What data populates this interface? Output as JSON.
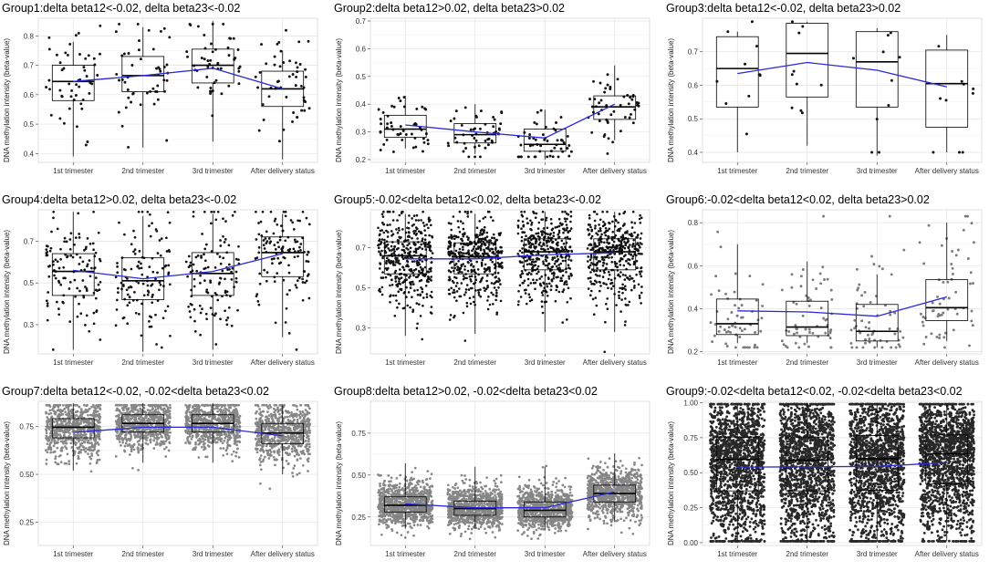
{
  "figure": {
    "ylabel": "DNA methylation intensity (beta-value)",
    "categories": [
      "1st trimester",
      "2nd trimester",
      "3rd trimester",
      "After delivery status"
    ]
  },
  "colors": {
    "trend": "#2a2ad8",
    "point": "#111111",
    "box": "#000000",
    "panel_bg": "#ffffff",
    "grid": "#e3e3e3"
  },
  "chart_data": [
    {
      "type": "box",
      "title": "Group1:delta beta12<-0.02, delta beta23<-0.02",
      "categories": [
        "1st trimester",
        "2nd trimester",
        "3rd trimester",
        "After delivery status"
      ],
      "ylim": [
        0.37,
        0.86
      ],
      "yticks": [
        0.4,
        0.5,
        0.6,
        0.7,
        0.8
      ],
      "ytick_labels": [
        "0.4",
        "0.5",
        "0.6",
        "0.7",
        "0.8"
      ],
      "box": [
        {
          "min": 0.39,
          "q1": 0.58,
          "median": 0.645,
          "q3": 0.7,
          "max": 0.78
        },
        {
          "min": 0.42,
          "q1": 0.61,
          "median": 0.665,
          "q3": 0.73,
          "max": 0.83
        },
        {
          "min": 0.44,
          "q1": 0.64,
          "median": 0.7,
          "q3": 0.755,
          "max": 0.85
        },
        {
          "min": 0.38,
          "q1": 0.56,
          "median": 0.62,
          "q3": 0.68,
          "max": 0.75
        }
      ],
      "trend": [
        0.645,
        0.665,
        0.69,
        0.62
      ],
      "n_points": 50,
      "point_opacity": 1,
      "point_size": 2.3,
      "y_low": 0.39,
      "y_high": 0.84
    },
    {
      "type": "box",
      "title": "Group2:delta beta12>0.02, delta beta23>0.02",
      "categories": [
        "1st trimester",
        "2nd trimester",
        "3rd trimester",
        "After delivery status"
      ],
      "ylim": [
        0.19,
        0.71
      ],
      "yticks": [
        0.2,
        0.3,
        0.4,
        0.5,
        0.6,
        0.7
      ],
      "ytick_labels": [
        "0.2",
        "0.3",
        "0.4",
        "0.5",
        "0.6",
        "0.7"
      ],
      "box": [
        {
          "min": 0.24,
          "q1": 0.28,
          "median": 0.31,
          "q3": 0.36,
          "max": 0.43
        },
        {
          "min": 0.22,
          "q1": 0.26,
          "median": 0.29,
          "q3": 0.33,
          "max": 0.4
        },
        {
          "min": 0.2,
          "q1": 0.23,
          "median": 0.255,
          "q3": 0.31,
          "max": 0.38
        },
        {
          "min": 0.27,
          "q1": 0.345,
          "median": 0.39,
          "q3": 0.43,
          "max": 0.54
        }
      ],
      "trend": [
        0.325,
        0.3,
        0.278,
        0.4
      ],
      "n_points": 50,
      "point_opacity": 1,
      "point_size": 2.3,
      "y_low": 0.21,
      "y_high": 0.69
    },
    {
      "type": "box",
      "title": "Group3:delta beta12<-0.02, delta beta23>0.02",
      "categories": [
        "1st trimester",
        "2nd trimester",
        "3rd trimester",
        "After delivery status"
      ],
      "ylim": [
        0.37,
        0.8
      ],
      "yticks": [
        0.4,
        0.5,
        0.6,
        0.7
      ],
      "ytick_labels": [
        "0.4",
        "0.5",
        "0.6",
        "0.7"
      ],
      "box": [
        {
          "min": 0.4,
          "q1": 0.535,
          "median": 0.65,
          "q3": 0.745,
          "max": 0.76
        },
        {
          "min": 0.42,
          "q1": 0.565,
          "median": 0.695,
          "q3": 0.785,
          "max": 0.79
        },
        {
          "min": 0.39,
          "q1": 0.535,
          "median": 0.67,
          "q3": 0.76,
          "max": 0.77
        },
        {
          "min": 0.4,
          "q1": 0.475,
          "median": 0.605,
          "q3": 0.705,
          "max": 0.75
        }
      ],
      "trend": [
        0.635,
        0.668,
        0.645,
        0.595
      ],
      "n_points": 10,
      "point_opacity": 1,
      "point_size": 2.4,
      "y_low": 0.4,
      "y_high": 0.79
    },
    {
      "type": "box",
      "title": "Group4:delta beta12>0.02, delta beta23<-0.02",
      "categories": [
        "1st trimester",
        "2nd trimester",
        "3rd trimester",
        "After delivery status"
      ],
      "ylim": [
        0.16,
        0.85
      ],
      "yticks": [
        0.3,
        0.5,
        0.7
      ],
      "ytick_labels": [
        "0.3",
        "0.5",
        "0.7"
      ],
      "box": [
        {
          "min": 0.18,
          "q1": 0.44,
          "median": 0.555,
          "q3": 0.64,
          "max": 0.84
        },
        {
          "min": 0.17,
          "q1": 0.42,
          "median": 0.51,
          "q3": 0.62,
          "max": 0.82
        },
        {
          "min": 0.18,
          "q1": 0.44,
          "median": 0.545,
          "q3": 0.645,
          "max": 0.83
        },
        {
          "min": 0.24,
          "q1": 0.53,
          "median": 0.645,
          "q3": 0.72,
          "max": 0.83
        }
      ],
      "trend": [
        0.56,
        0.52,
        0.555,
        0.64
      ],
      "n_points": 120,
      "point_opacity": 1,
      "point_size": 2.1,
      "y_low": 0.18,
      "y_high": 0.84
    },
    {
      "type": "box",
      "title": "Group5:-0.02<delta beta12<0.02, delta beta23<-0.02",
      "categories": [
        "1st trimester",
        "2nd trimester",
        "3rd trimester",
        "After delivery status"
      ],
      "ylim": [
        0.17,
        0.89
      ],
      "yticks": [
        0.3,
        0.5,
        0.7
      ],
      "ytick_labels": [
        "0.3",
        "0.5",
        "0.7"
      ],
      "box": [
        {
          "min": 0.26,
          "q1": 0.57,
          "median": 0.66,
          "q3": 0.73,
          "max": 0.87
        },
        {
          "min": 0.27,
          "q1": 0.57,
          "median": 0.655,
          "q3": 0.725,
          "max": 0.87
        },
        {
          "min": 0.28,
          "q1": 0.59,
          "median": 0.68,
          "q3": 0.745,
          "max": 0.88
        },
        {
          "min": 0.28,
          "q1": 0.59,
          "median": 0.68,
          "q3": 0.745,
          "max": 0.88
        }
      ],
      "trend": [
        0.645,
        0.645,
        0.665,
        0.675
      ],
      "n_points": 420,
      "point_opacity": 1,
      "point_size": 2.0,
      "y_low": 0.18,
      "y_high": 0.88
    },
    {
      "type": "box",
      "title": "Group6:-0.02<delta beta12<0.02, delta beta23>0.02",
      "categories": [
        "1st trimester",
        "2nd trimester",
        "3rd trimester",
        "After delivery status"
      ],
      "ylim": [
        0.19,
        0.86
      ],
      "yticks": [
        0.2,
        0.4,
        0.6,
        0.8
      ],
      "ytick_labels": [
        "0.2",
        "0.4",
        "0.6",
        "0.8"
      ],
      "box": [
        {
          "min": 0.24,
          "q1": 0.28,
          "median": 0.33,
          "q3": 0.445,
          "max": 0.7
        },
        {
          "min": 0.24,
          "q1": 0.275,
          "median": 0.315,
          "q3": 0.435,
          "max": 0.62
        },
        {
          "min": 0.22,
          "q1": 0.25,
          "median": 0.295,
          "q3": 0.42,
          "max": 0.56
        },
        {
          "min": 0.25,
          "q1": 0.345,
          "median": 0.405,
          "q3": 0.535,
          "max": 0.8
        }
      ],
      "trend": [
        0.39,
        0.385,
        0.365,
        0.455
      ],
      "n_points": 60,
      "point_opacity": 0.55,
      "point_size": 2.3,
      "y_low": 0.22,
      "y_high": 0.83
    },
    {
      "type": "box",
      "title": "Group7:delta beta12<-0.02, -0.02<delta beta23<0.02",
      "categories": [
        "1st trimester",
        "2nd trimester",
        "3rd trimester",
        "After delivery status"
      ],
      "ylim": [
        0.13,
        0.88
      ],
      "yticks": [
        0.25,
        0.5,
        0.75
      ],
      "ytick_labels": [
        "0.25",
        "0.50",
        "0.75"
      ],
      "box": [
        {
          "min": 0.52,
          "q1": 0.69,
          "median": 0.745,
          "q3": 0.79,
          "max": 0.87
        },
        {
          "min": 0.56,
          "q1": 0.72,
          "median": 0.765,
          "q3": 0.81,
          "max": 0.87
        },
        {
          "min": 0.56,
          "q1": 0.72,
          "median": 0.765,
          "q3": 0.81,
          "max": 0.87
        },
        {
          "min": 0.5,
          "q1": 0.66,
          "median": 0.715,
          "q3": 0.765,
          "max": 0.86
        }
      ],
      "trend": [
        0.718,
        0.745,
        0.745,
        0.7
      ],
      "n_points": 700,
      "point_opacity": 0.5,
      "point_size": 2.1,
      "y_low": 0.15,
      "y_high": 0.86
    },
    {
      "type": "box",
      "title": "Group8:delta beta12>0.02, -0.02<delta beta23<0.02",
      "categories": [
        "1st trimester",
        "2nd trimester",
        "3rd trimester",
        "After delivery status"
      ],
      "ylim": [
        0.08,
        0.94
      ],
      "yticks": [
        0.25,
        0.5,
        0.75
      ],
      "ytick_labels": [
        "0.25",
        "0.50",
        "0.75"
      ],
      "box": [
        {
          "min": 0.18,
          "q1": 0.28,
          "median": 0.32,
          "q3": 0.37,
          "max": 0.57
        },
        {
          "min": 0.18,
          "q1": 0.26,
          "median": 0.3,
          "q3": 0.345,
          "max": 0.55
        },
        {
          "min": 0.17,
          "q1": 0.25,
          "median": 0.29,
          "q3": 0.34,
          "max": 0.55
        },
        {
          "min": 0.22,
          "q1": 0.34,
          "median": 0.39,
          "q3": 0.44,
          "max": 0.63
        }
      ],
      "trend": [
        0.328,
        0.305,
        0.305,
        0.4
      ],
      "n_points": 900,
      "point_opacity": 0.5,
      "point_size": 2.1,
      "y_low": 0.1,
      "y_high": 0.92
    },
    {
      "type": "box",
      "title": "Group9:-0.02<delta beta12<0.02, -0.02<delta beta23<0.02",
      "categories": [
        "1st trimester",
        "2nd trimester",
        "3rd trimester",
        "After delivery status"
      ],
      "ylim": [
        -0.02,
        1.01
      ],
      "yticks": [
        0.0,
        0.25,
        0.5,
        0.75,
        1.0
      ],
      "ytick_labels": [
        "0.00",
        "0.25",
        "0.50",
        "0.75",
        "1.00"
      ],
      "box": [
        {
          "min": 0.01,
          "q1": 0.37,
          "median": 0.595,
          "q3": 0.755,
          "max": 0.99
        },
        {
          "min": 0.01,
          "q1": 0.37,
          "median": 0.59,
          "q3": 0.755,
          "max": 0.99
        },
        {
          "min": 0.01,
          "q1": 0.375,
          "median": 0.6,
          "q3": 0.765,
          "max": 0.99
        },
        {
          "min": 0.01,
          "q1": 0.42,
          "median": 0.635,
          "q3": 0.77,
          "max": 0.99
        }
      ],
      "trend": [
        0.54,
        0.542,
        0.545,
        0.572
      ],
      "n_points": 1600,
      "point_opacity": 0.9,
      "point_size": 2.2,
      "y_low": 0.01,
      "y_high": 0.99
    }
  ]
}
